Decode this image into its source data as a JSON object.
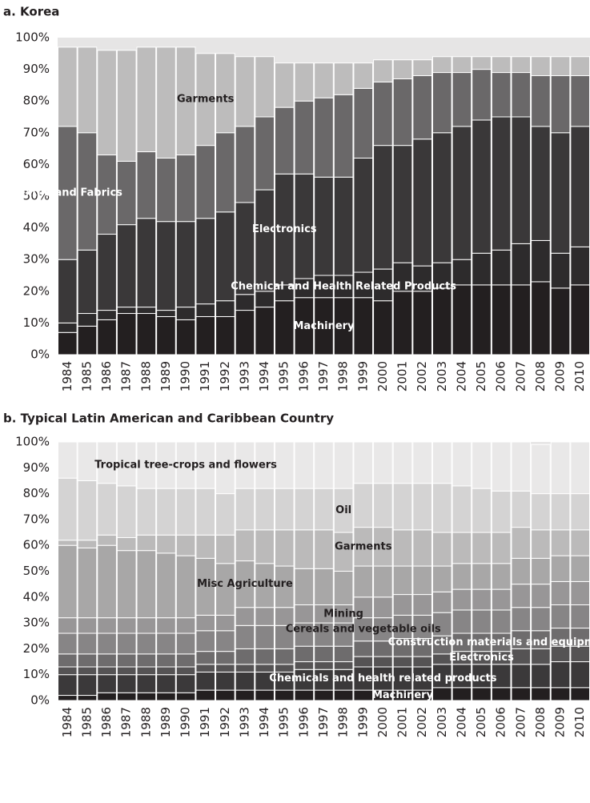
{
  "chart_data": [
    {
      "type": "stacked_bar",
      "title": "a. Korea",
      "categories": [
        "1984",
        "1985",
        "1986",
        "1987",
        "1988",
        "1989",
        "1990",
        "1991",
        "1992",
        "1993",
        "1994",
        "1995",
        "1996",
        "1997",
        "1998",
        "1999",
        "2000",
        "2001",
        "2002",
        "2003",
        "2004",
        "2005",
        "2006",
        "2007",
        "2008",
        "2009",
        "2010"
      ],
      "ylim": [
        0,
        100
      ],
      "yticks": [
        {
          "value": 0,
          "label": "0%"
        },
        {
          "value": 10,
          "label": "10%"
        },
        {
          "value": 20,
          "label": "20%"
        },
        {
          "value": 30,
          "label": "30%"
        },
        {
          "value": 40,
          "label": "40%"
        },
        {
          "value": 50,
          "label": "50%"
        },
        {
          "value": 60,
          "label": "60%"
        },
        {
          "value": 70,
          "label": "70%"
        },
        {
          "value": 80,
          "label": "80%"
        },
        {
          "value": 90,
          "label": "90%"
        },
        {
          "value": 100,
          "label": "100%"
        }
      ],
      "series": [
        {
          "name": "Machinery",
          "color": "#231f20",
          "values": [
            7,
            9,
            11,
            13,
            13,
            12,
            11,
            12,
            12,
            14,
            15,
            17,
            18,
            18,
            18,
            18,
            17,
            20,
            20,
            21,
            22,
            22,
            22,
            22,
            23,
            21,
            22
          ]
        },
        {
          "name": "Chemical and Health Related Products",
          "color": "#2d2b2c",
          "values": [
            3,
            4,
            3,
            2,
            2,
            2,
            4,
            4,
            5,
            5,
            5,
            5,
            6,
            7,
            7,
            8,
            10,
            9,
            8,
            8,
            8,
            10,
            11,
            13,
            13,
            11,
            12
          ]
        },
        {
          "name": "Electronics",
          "color": "#3a3839",
          "values": [
            20,
            20,
            24,
            26,
            28,
            28,
            27,
            27,
            28,
            29,
            32,
            35,
            33,
            31,
            31,
            36,
            39,
            37,
            40,
            41,
            42,
            42,
            42,
            40,
            36,
            38,
            38
          ]
        },
        {
          "name": "Textile and Fabrics",
          "color": "#6a6869",
          "values": [
            42,
            37,
            25,
            20,
            21,
            20,
            21,
            23,
            25,
            24,
            23,
            21,
            23,
            25,
            26,
            22,
            20,
            21,
            20,
            19,
            17,
            16,
            14,
            14,
            16,
            18,
            16
          ]
        },
        {
          "name": "Garments",
          "color": "#bdbcbc",
          "values": [
            25,
            27,
            33,
            35,
            33,
            35,
            34,
            29,
            25,
            22,
            19,
            14,
            12,
            11,
            10,
            8,
            7,
            6,
            5,
            5,
            5,
            4,
            5,
            5,
            6,
            6,
            6
          ]
        }
      ]
    },
    {
      "type": "stacked_bar",
      "title": "b. Typical Latin American and Caribbean Country",
      "categories": [
        "1984",
        "1985",
        "1986",
        "1987",
        "1988",
        "1989",
        "1990",
        "1991",
        "1992",
        "1993",
        "1994",
        "1995",
        "1996",
        "1997",
        "1998",
        "1999",
        "2000",
        "2001",
        "2002",
        "2003",
        "2004",
        "2005",
        "2006",
        "2007",
        "2008",
        "2009",
        "2010"
      ],
      "ylim": [
        0,
        100
      ],
      "yticks": [
        {
          "value": 0,
          "label": "0%"
        },
        {
          "value": 10,
          "label": "10%"
        },
        {
          "value": 20,
          "label": "20%"
        },
        {
          "value": 30,
          "label": "30%"
        },
        {
          "value": 40,
          "label": "40%"
        },
        {
          "value": 50,
          "label": "50%"
        },
        {
          "value": 60,
          "label": "60%"
        },
        {
          "value": 70,
          "label": "70%"
        },
        {
          "value": 80,
          "label": "80%"
        },
        {
          "value": 90,
          "label": "90%"
        },
        {
          "value": 100,
          "label": "100%"
        }
      ],
      "series": [
        {
          "name": "Machinery",
          "color": "#231f20",
          "values": [
            2,
            2,
            3,
            3,
            3,
            3,
            3,
            4,
            4,
            4,
            4,
            4,
            4,
            4,
            4,
            4,
            4,
            4,
            4,
            5,
            5,
            5,
            5,
            5,
            5,
            5,
            5
          ]
        },
        {
          "name": "Chemicals and health related products",
          "color": "#3b393a",
          "values": [
            8,
            8,
            7,
            7,
            7,
            7,
            7,
            7,
            7,
            7,
            7,
            7,
            8,
            8,
            8,
            9,
            9,
            9,
            9,
            9,
            9,
            9,
            9,
            9,
            9,
            10,
            10
          ]
        },
        {
          "name": "Electronics",
          "color": "#555354",
          "values": [
            3,
            3,
            3,
            3,
            3,
            3,
            3,
            3,
            3,
            3,
            3,
            3,
            3,
            3,
            3,
            4,
            4,
            4,
            4,
            4,
            5,
            5,
            5,
            6,
            6,
            6,
            6
          ]
        },
        {
          "name": "Construction materials and equipment",
          "color": "#6e6c6d",
          "values": [
            5,
            5,
            5,
            5,
            5,
            5,
            5,
            5,
            5,
            6,
            6,
            6,
            6,
            6,
            6,
            6,
            6,
            7,
            7,
            7,
            7,
            7,
            7,
            7,
            7,
            7,
            7
          ]
        },
        {
          "name": "Cereals and vegetable oils",
          "color": "#878586",
          "values": [
            8,
            8,
            8,
            8,
            8,
            8,
            8,
            8,
            8,
            9,
            9,
            9,
            9,
            9,
            9,
            9,
            9,
            9,
            9,
            9,
            9,
            9,
            9,
            9,
            9,
            9,
            9
          ]
        },
        {
          "name": "Mining",
          "color": "#989697",
          "values": [
            6,
            6,
            6,
            6,
            6,
            6,
            6,
            6,
            6,
            7,
            7,
            7,
            7,
            7,
            7,
            8,
            8,
            8,
            8,
            8,
            8,
            8,
            8,
            9,
            9,
            9,
            9
          ]
        },
        {
          "name": "Misc Agriculture",
          "color": "#a8a7a7",
          "values": [
            28,
            27,
            28,
            26,
            26,
            25,
            24,
            22,
            20,
            18,
            17,
            16,
            14,
            14,
            13,
            12,
            12,
            11,
            11,
            10,
            10,
            10,
            10,
            10,
            10,
            10,
            10
          ]
        },
        {
          "name": "Garments",
          "color": "#bbbaba",
          "values": [
            2,
            3,
            4,
            5,
            6,
            7,
            8,
            9,
            11,
            12,
            13,
            14,
            15,
            15,
            15,
            15,
            15,
            14,
            14,
            13,
            12,
            12,
            12,
            12,
            11,
            10,
            10
          ]
        },
        {
          "name": "Oil",
          "color": "#d4d3d3",
          "values": [
            24,
            23,
            20,
            20,
            18,
            18,
            18,
            18,
            16,
            16,
            16,
            16,
            16,
            16,
            17,
            17,
            17,
            18,
            18,
            19,
            18,
            17,
            16,
            14,
            14,
            14,
            14
          ]
        },
        {
          "name": "Tropical tree-crops and flowers",
          "color": "#e9e8e8",
          "values": [
            14,
            15,
            16,
            17,
            18,
            18,
            18,
            18,
            20,
            18,
            18,
            18,
            18,
            18,
            18,
            16,
            16,
            16,
            16,
            16,
            17,
            18,
            19,
            19,
            19,
            20,
            20
          ]
        }
      ]
    }
  ]
}
